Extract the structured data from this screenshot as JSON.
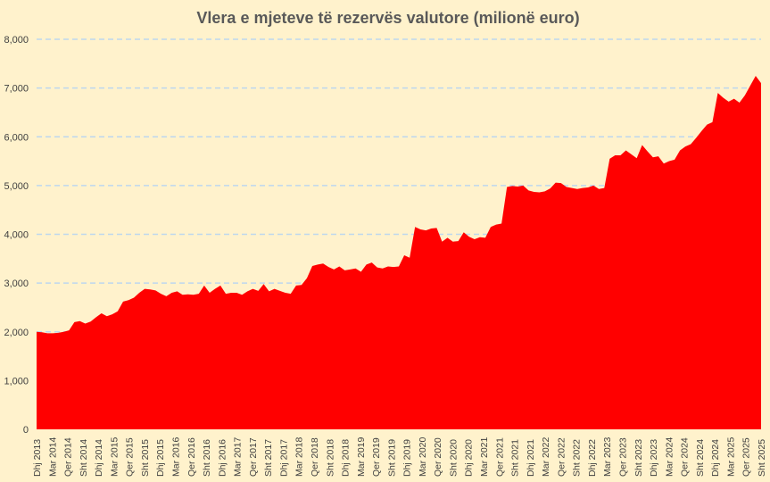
{
  "chart_data": {
    "type": "area",
    "title": "Vlera e mjeteve të rezervës valutore (milionë euro)",
    "xlabel": "",
    "ylabel": "",
    "ylim": [
      0,
      8000
    ],
    "y_ticks": [
      "0",
      "1,000",
      "2,000",
      "3,000",
      "4,000",
      "5,000",
      "6,000",
      "7,000",
      "8,000"
    ],
    "y_tick_values": [
      0,
      1000,
      2000,
      3000,
      4000,
      5000,
      6000,
      7000,
      8000
    ],
    "grid": true,
    "legend": "none",
    "series_color": "#FF0000",
    "x_tick_labels": [
      "Dhj 2013",
      "Mar 2014",
      "Qer 2014",
      "Sht 2014",
      "Dhj 2014",
      "Mar 2015",
      "Qer 2015",
      "Sht 2015",
      "Dhj 2015",
      "Mar 2016",
      "Qer 2016",
      "Sht 2016",
      "Dhj 2016",
      "Mar 2017",
      "Qer 2017",
      "Sht 2017",
      "Dhj 2017",
      "Mar 2018",
      "Qer 2018",
      "Sht 2018",
      "Dhj 2018",
      "Mar 2019",
      "Qer 2019",
      "Sht 2019",
      "Dhj 2019",
      "Mar 2020",
      "Qer 2020",
      "Sht 2020",
      "Dhj 2020",
      "Mar 2021",
      "Qer 2021",
      "Sht 2021",
      "Dhj 2021",
      "Mar 2022",
      "Qer 2022",
      "Sht 2022",
      "Dhj 2022",
      "Mar 2023",
      "Qer 2023",
      "Sht 2023",
      "Dhj 2023",
      "Mar 2024",
      "Qer 2024",
      "Sht 2024",
      "Dhj 2024",
      "Mar 2025",
      "Qer 2025",
      "Sht 2025"
    ],
    "series": [
      {
        "values": [
          2000,
          1990,
          1970,
          1970,
          1980,
          2000,
          2030,
          2200,
          2220,
          2170,
          2210,
          2300,
          2380,
          2320,
          2360,
          2420,
          2620,
          2650,
          2700,
          2800,
          2880,
          2870,
          2850,
          2780,
          2730,
          2800,
          2830,
          2760,
          2770,
          2760,
          2780,
          2950,
          2800,
          2880,
          2950,
          2780,
          2800,
          2800,
          2760,
          2830,
          2880,
          2840,
          2980,
          2830,
          2880,
          2840,
          2800,
          2780,
          2950,
          2960,
          3100,
          3350,
          3380,
          3400,
          3330,
          3280,
          3340,
          3260,
          3280,
          3300,
          3230,
          3380,
          3420,
          3320,
          3300,
          3340,
          3330,
          3340,
          3570,
          3520,
          4150,
          4100,
          4080,
          4120,
          4130,
          3850,
          3930,
          3850,
          3860,
          4040,
          3950,
          3900,
          3940,
          3930,
          4150,
          4200,
          4220,
          4970,
          4990,
          4980,
          5000,
          4900,
          4870,
          4860,
          4880,
          4940,
          5060,
          5050,
          4970,
          4950,
          4930,
          4950,
          4960,
          5000,
          4930,
          4950,
          5550,
          5620,
          5620,
          5720,
          5640,
          5560,
          5830,
          5700,
          5580,
          5600,
          5450,
          5500,
          5530,
          5720,
          5800,
          5850,
          5980,
          6120,
          6250,
          6300,
          6900,
          6800,
          6720,
          6780,
          6700,
          6850,
          7050,
          7250,
          7100
        ]
      }
    ]
  }
}
